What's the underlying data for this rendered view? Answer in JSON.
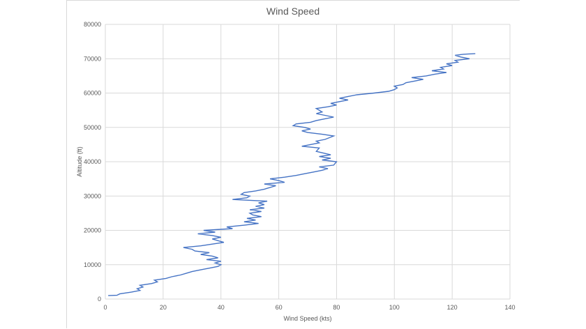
{
  "chart_data": {
    "type": "line",
    "title": "Wind Speed",
    "xlabel": "Wind Speed (kts)",
    "ylabel": "Altitude (ft)",
    "xlim": [
      0,
      140
    ],
    "ylim": [
      0,
      80000
    ],
    "xticks": [
      0,
      20,
      40,
      60,
      80,
      100,
      120,
      140
    ],
    "yticks": [
      0,
      10000,
      20000,
      30000,
      40000,
      50000,
      60000,
      70000,
      80000
    ],
    "grid": true,
    "line_color": "#4472c4",
    "series": [
      {
        "points": [
          [
            1,
            1000
          ],
          [
            4,
            1100
          ],
          [
            5,
            1500
          ],
          [
            9,
            2000
          ],
          [
            12,
            2500
          ],
          [
            11,
            3000
          ],
          [
            13,
            3500
          ],
          [
            12,
            4000
          ],
          [
            16,
            4500
          ],
          [
            18,
            5000
          ],
          [
            17,
            5500
          ],
          [
            21,
            6000
          ],
          [
            23,
            6500
          ],
          [
            26,
            7000
          ],
          [
            28,
            7500
          ],
          [
            30,
            8000
          ],
          [
            33,
            8500
          ],
          [
            36,
            9000
          ],
          [
            39,
            9500
          ],
          [
            40,
            10000
          ],
          [
            38,
            10500
          ],
          [
            40,
            11000
          ],
          [
            35,
            11500
          ],
          [
            39,
            12000
          ],
          [
            37,
            12500
          ],
          [
            33,
            13000
          ],
          [
            36,
            13500
          ],
          [
            31,
            14000
          ],
          [
            30,
            14500
          ],
          [
            27,
            15000
          ],
          [
            33,
            15500
          ],
          [
            37,
            16000
          ],
          [
            41,
            16500
          ],
          [
            39,
            17000
          ],
          [
            37,
            17500
          ],
          [
            40,
            18000
          ],
          [
            37,
            18500
          ],
          [
            32,
            19000
          ],
          [
            38,
            19500
          ],
          [
            34,
            20000
          ],
          [
            44,
            20500
          ],
          [
            42,
            21000
          ],
          [
            48,
            21500
          ],
          [
            53,
            22000
          ],
          [
            48,
            22500
          ],
          [
            52,
            23000
          ],
          [
            49,
            23500
          ],
          [
            54,
            24000
          ],
          [
            51,
            24500
          ],
          [
            50,
            25000
          ],
          [
            54,
            25500
          ],
          [
            50,
            26000
          ],
          [
            55,
            26500
          ],
          [
            52,
            27000
          ],
          [
            55,
            27500
          ],
          [
            53,
            28000
          ],
          [
            56,
            28500
          ],
          [
            44,
            29000
          ],
          [
            49,
            29500
          ],
          [
            50,
            30000
          ],
          [
            47,
            30500
          ],
          [
            48,
            31000
          ],
          [
            52,
            31500
          ],
          [
            55,
            32000
          ],
          [
            59,
            33000
          ],
          [
            55,
            33500
          ],
          [
            62,
            34000
          ],
          [
            60,
            34500
          ],
          [
            57,
            35000
          ],
          [
            62,
            35500
          ],
          [
            66,
            36000
          ],
          [
            69,
            36500
          ],
          [
            72,
            37000
          ],
          [
            75,
            37500
          ],
          [
            77,
            38000
          ],
          [
            74,
            38500
          ],
          [
            79,
            39000
          ],
          [
            80,
            40000
          ],
          [
            75,
            40500
          ],
          [
            78,
            41000
          ],
          [
            74,
            41500
          ],
          [
            78,
            42000
          ],
          [
            73,
            43000
          ],
          [
            74,
            44000
          ],
          [
            68,
            44500
          ],
          [
            71,
            45000
          ],
          [
            74,
            45500
          ],
          [
            73,
            46000
          ],
          [
            76,
            46500
          ],
          [
            79,
            47500
          ],
          [
            75,
            48000
          ],
          [
            70,
            48500
          ],
          [
            68,
            49000
          ],
          [
            71,
            49500
          ],
          [
            69,
            50000
          ],
          [
            65,
            50500
          ],
          [
            66,
            51000
          ],
          [
            71,
            51500
          ],
          [
            73,
            52000
          ],
          [
            76,
            52500
          ],
          [
            79,
            53000
          ],
          [
            73,
            54000
          ],
          [
            75,
            54500
          ],
          [
            74,
            55000
          ],
          [
            73,
            55500
          ],
          [
            77,
            56000
          ],
          [
            80,
            56500
          ],
          [
            78,
            57000
          ],
          [
            81,
            57500
          ],
          [
            84,
            58000
          ],
          [
            81,
            58500
          ],
          [
            84,
            59000
          ],
          [
            87,
            59500
          ],
          [
            93,
            60000
          ],
          [
            98,
            60500
          ],
          [
            100,
            61000
          ],
          [
            101,
            61500
          ],
          [
            100,
            62000
          ],
          [
            103,
            62500
          ],
          [
            104,
            63000
          ],
          [
            107,
            63500
          ],
          [
            110,
            64000
          ],
          [
            106,
            64500
          ],
          [
            111,
            65000
          ],
          [
            114,
            65500
          ],
          [
            118,
            66000
          ],
          [
            113,
            66500
          ],
          [
            117,
            67000
          ],
          [
            116,
            67500
          ],
          [
            120,
            68000
          ],
          [
            118,
            68500
          ],
          [
            122,
            69000
          ],
          [
            121,
            69500
          ],
          [
            126,
            70000
          ],
          [
            123,
            70500
          ],
          [
            121,
            71000
          ],
          [
            124,
            71300
          ],
          [
            128,
            71500
          ]
        ]
      }
    ]
  }
}
